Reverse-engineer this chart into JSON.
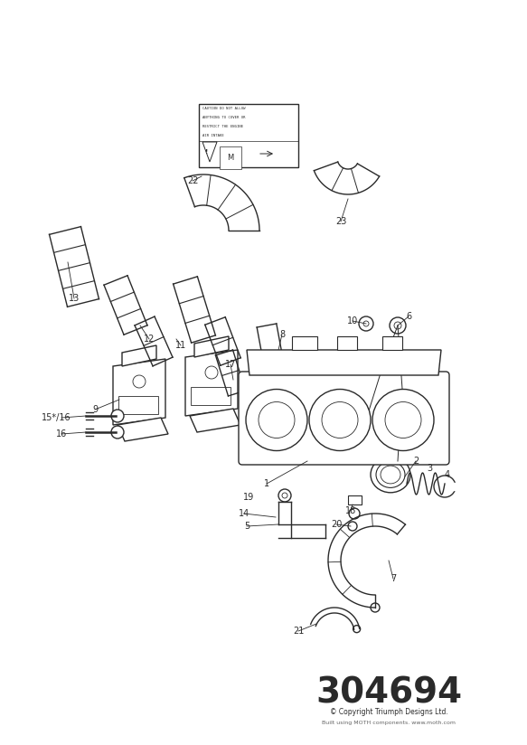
{
  "bg_color": "#ffffff",
  "line_color": "#2a2a2a",
  "fig_width": 5.83,
  "fig_height": 8.24,
  "dpi": 100,
  "part_number": "304694",
  "copyright": "© Copyright Triumph Designs Ltd.",
  "subtitle": "Built using MOTH components. www.moth.com"
}
